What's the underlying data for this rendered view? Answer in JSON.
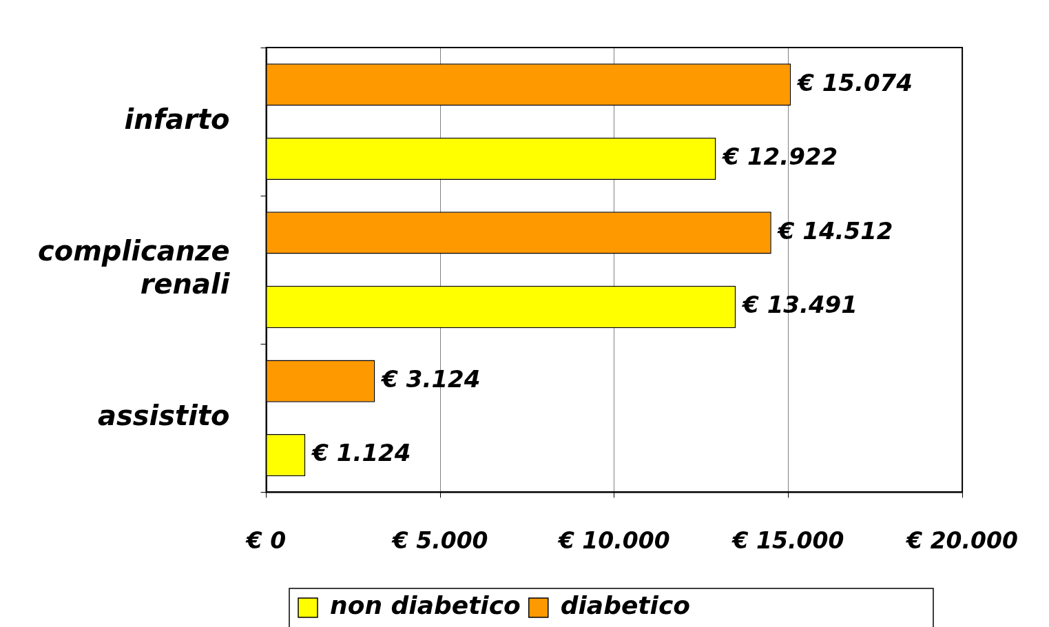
{
  "chart_data": {
    "type": "bar",
    "orientation": "horizontal",
    "categories": [
      "infarto",
      "complicanze renali",
      "assistito"
    ],
    "series": [
      {
        "name": "non diabetico",
        "color": "#ffff00",
        "values": [
          12922,
          13491,
          1124
        ],
        "value_labels": [
          "€ 12.922",
          "€ 13.491",
          "€ 1.124"
        ]
      },
      {
        "name": "diabetico",
        "color": "#ff9900",
        "values": [
          15074,
          14512,
          3124
        ],
        "value_labels": [
          "€ 15.074",
          "€ 14.512",
          "€ 3.124"
        ]
      }
    ],
    "xlim": [
      0,
      20000
    ],
    "xticks": [
      {
        "value": 0,
        "label": "€ 0"
      },
      {
        "value": 5000,
        "label": "€ 5.000"
      },
      {
        "value": 10000,
        "label": "€ 10.000"
      },
      {
        "value": 15000,
        "label": "€ 15.000"
      },
      {
        "value": 20000,
        "label": "€ 20.000"
      }
    ],
    "grid": "x",
    "legend": "bottom"
  }
}
